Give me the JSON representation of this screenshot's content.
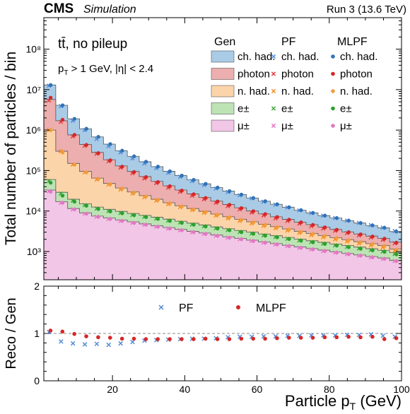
{
  "header": {
    "experiment": "CMS",
    "tag": "Simulation",
    "run": "Run 3 (13.6 TeV)"
  },
  "colors": {
    "ch_had": "#a9cbe6",
    "photon": "#ecaeae",
    "n_had": "#fcd4aa",
    "electron": "#bde3b4",
    "muon": "#f2c6e6",
    "pf_ch_had": "#4c88d9",
    "pf_photon": "#e0363c",
    "pf_n_had": "#f28a1c",
    "pf_electron": "#3da336",
    "pf_muon": "#e66fc8",
    "mlpf_ch_had": "#2f73b8",
    "mlpf_photon": "#d62728",
    "mlpf_n_had": "#f29b3c",
    "mlpf_electron": "#2ca02c",
    "mlpf_muon": "#e377c2",
    "ratio_pf": "#4c88d9",
    "ratio_mlpf": "#d62728"
  },
  "chart_data": [
    {
      "type": "area",
      "annotation_line1": "tt̄, no pileup",
      "annotation_line2_pre": "p",
      "annotation_line2_sub": "T",
      "annotation_line2_post": " > 1 GeV, |η| < 2.4",
      "ylabel": "Total number of particles / bin",
      "yscale": "log",
      "ylim": [
        200,
        600000000
      ],
      "xlim": [
        1,
        100
      ],
      "ytick_labels": [
        "10³",
        "10⁴",
        "10⁵",
        "10⁶",
        "10⁷",
        "10⁸"
      ],
      "legend_headers": {
        "gen": "Gen",
        "pf": "PF",
        "mlpf": "MLPF"
      },
      "series": [
        {
          "key": "ch_had",
          "name": "ch. had."
        },
        {
          "key": "photon",
          "name": "photon"
        },
        {
          "key": "n_had",
          "name": "n. had."
        },
        {
          "key": "electron",
          "name": "e±"
        },
        {
          "key": "muon",
          "name": "μ±"
        }
      ],
      "bin_edges": [
        1,
        4.3,
        7.6,
        10.9,
        14.2,
        17.5,
        20.8,
        24.1,
        27.4,
        30.7,
        34,
        37.3,
        40.6,
        43.9,
        47.2,
        50.5,
        53.8,
        57.1,
        60.4,
        63.7,
        67,
        70.3,
        73.6,
        76.9,
        80.2,
        83.5,
        86.8,
        90.1,
        93.4,
        96.7,
        100
      ],
      "gen_stack_totals": {
        "muon": [
          33000,
          17000,
          11500,
          9000,
          7500,
          6700,
          6000,
          5400,
          4800,
          4300,
          3900,
          3500,
          3150,
          2850,
          2550,
          2300,
          2100,
          1900,
          1720,
          1560,
          1420,
          1300,
          1180,
          1080,
          980,
          890,
          820,
          750,
          690,
          600
        ],
        "electron": [
          60000,
          29000,
          19500,
          15000,
          12500,
          11000,
          9800,
          8700,
          7800,
          7000,
          6300,
          5600,
          5000,
          4500,
          4050,
          3650,
          3300,
          3000,
          2700,
          2450,
          2220,
          2020,
          1840,
          1680,
          1530,
          1400,
          1280,
          1170,
          1070,
          940
        ],
        "n_had": [
          1000000,
          300000,
          150000,
          95000,
          65000,
          48000,
          37000,
          29500,
          24000,
          19500,
          16000,
          13500,
          11500,
          9800,
          8400,
          7200,
          6250,
          5400,
          4700,
          4100,
          3600,
          3150,
          2800,
          2480,
          2200,
          1960,
          1750,
          1560,
          1400,
          1150
        ],
        "photon": [
          5700000,
          1700000,
          760000,
          440000,
          280000,
          185000,
          130000,
          95000,
          71000,
          54000,
          42000,
          33000,
          26500,
          21500,
          17500,
          14500,
          12000,
          10000,
          8500,
          7200,
          6200,
          5300,
          4600,
          4000,
          3500,
          3050,
          2700,
          2400,
          2100,
          1700
        ],
        "ch_had": [
          13000000,
          4100000,
          1900000,
          1080000,
          680000,
          450000,
          310000,
          225000,
          165000,
          125000,
          96000,
          75000,
          59000,
          47000,
          38000,
          31000,
          25500,
          21000,
          17500,
          14700,
          12400,
          10500,
          9000,
          7700,
          6700,
          5800,
          5050,
          4400,
          3850,
          3100
        ]
      },
      "reco_markers": {
        "pf": {
          "ch_had": [
            12500000,
            3900000,
            1700000,
            1000000,
            600000,
            400000,
            280000,
            200000,
            150000,
            115000,
            88000,
            70000,
            55000,
            44000,
            36000,
            29500,
            24500,
            20500,
            17000,
            14400,
            12200,
            10400,
            8900,
            7700,
            6700,
            5800,
            5100,
            4500,
            3900,
            3200
          ],
          "photon": [
            5400000,
            1600000,
            700000,
            410000,
            260000,
            170000,
            118000,
            86000,
            64000,
            49000,
            38000,
            30000,
            24000,
            19500,
            16000,
            13200,
            11000,
            9200,
            7800,
            6600,
            5700,
            4900,
            4250,
            3700,
            3250,
            2850,
            2500,
            2220,
            1950,
            1600
          ],
          "n_had": [
            1000000,
            300000,
            140000,
            90000,
            60000,
            45000,
            34000,
            27000,
            22000,
            18000,
            14800,
            12500,
            10600,
            9000,
            7700,
            6600,
            5700,
            4950,
            4300,
            3750,
            3300,
            2900,
            2550,
            2250,
            2000,
            1780,
            1590,
            1420,
            1270,
            1040
          ],
          "electron": [
            55000,
            27000,
            18000,
            14000,
            11500,
            10000,
            9000,
            8000,
            7200,
            6500,
            5800,
            5200,
            4650,
            4200,
            3750,
            3400,
            3050,
            2780,
            2500,
            2270,
            2060,
            1880,
            1710,
            1560,
            1420,
            1300,
            1190,
            1090,
            1000,
            870
          ],
          "muon": [
            31000,
            16000,
            11000,
            8600,
            7200,
            6400,
            5700,
            5100,
            4600,
            4100,
            3700,
            3350,
            3000,
            2720,
            2440,
            2200,
            2010,
            1820,
            1650,
            1500,
            1360,
            1240,
            1130,
            1030,
            940,
            860,
            790,
            720,
            660,
            580
          ]
        },
        "mlpf": {
          "ch_had": [
            13000000,
            4100000,
            1900000,
            1080000,
            680000,
            450000,
            310000,
            225000,
            165000,
            125000,
            96000,
            75000,
            59000,
            47000,
            38000,
            31000,
            25500,
            21000,
            17500,
            14700,
            12400,
            10500,
            9000,
            7700,
            6700,
            5800,
            5050,
            4400,
            3850,
            3100
          ],
          "photon": [
            6300000,
            1800000,
            760000,
            430000,
            270000,
            180000,
            125000,
            92000,
            69000,
            52000,
            41000,
            32000,
            26000,
            21000,
            17200,
            14200,
            11800,
            9900,
            8400,
            7100,
            6100,
            5250,
            4550,
            3950,
            3450,
            3000,
            2650,
            2350,
            2070,
            1650
          ],
          "n_had": [
            1000000,
            280000,
            140000,
            90000,
            63000,
            46000,
            36000,
            28500,
            23000,
            19000,
            15500,
            13000,
            11000,
            9500,
            8100,
            7000,
            6050,
            5250,
            4550,
            4000,
            3500,
            3080,
            2720,
            2420,
            2150,
            1920,
            1710,
            1530,
            1370,
            1100
          ],
          "electron": [
            50000,
            24000,
            17000,
            13500,
            11200,
            9800,
            8800,
            7900,
            7100,
            6400,
            5700,
            5100,
            4600,
            4150,
            3700,
            3350,
            3000,
            2740,
            2460,
            2240,
            2030,
            1850,
            1690,
            1540,
            1400,
            1280,
            1170,
            1070,
            980,
            850
          ],
          "muon": [
            30000,
            16000,
            11000,
            8600,
            7200,
            6400,
            5700,
            5100,
            4600,
            4100,
            3700,
            3350,
            3000,
            2720,
            2440,
            2200,
            2010,
            1820,
            1650,
            1500,
            1360,
            1240,
            1130,
            1030,
            940,
            860,
            790,
            720,
            660,
            580
          ]
        }
      }
    },
    {
      "type": "scatter",
      "xlabel_pre": "Particle p",
      "xlabel_sub": "T",
      "xlabel_post": " (GeV)",
      "ylabel": "Reco / Gen",
      "xlim": [
        1,
        100
      ],
      "ylim": [
        0,
        2
      ],
      "xtick_labels": [
        "20",
        "40",
        "60",
        "80",
        "100"
      ],
      "xticks": [
        20,
        40,
        60,
        80,
        100
      ],
      "ytick_labels": [
        "0",
        "1",
        "2"
      ],
      "yticks": [
        0,
        1,
        2
      ],
      "reference_line": 1,
      "legend": [
        {
          "key": "pf",
          "name": "PF",
          "marker": "x"
        },
        {
          "key": "mlpf",
          "name": "MLPF",
          "marker": "o"
        }
      ],
      "x": [
        2.65,
        5.95,
        9.25,
        12.55,
        15.85,
        19.15,
        22.45,
        25.75,
        29.05,
        32.35,
        35.65,
        38.95,
        42.25,
        45.55,
        48.85,
        52.15,
        55.45,
        58.75,
        62.05,
        65.35,
        68.65,
        71.95,
        75.25,
        78.55,
        81.85,
        85.15,
        88.45,
        91.75,
        95.05,
        98.35
      ],
      "pf": [
        1.03,
        0.83,
        0.79,
        0.77,
        0.78,
        0.76,
        0.79,
        0.82,
        0.85,
        0.86,
        0.87,
        0.88,
        0.89,
        0.89,
        0.9,
        0.92,
        0.93,
        0.93,
        0.94,
        0.94,
        0.95,
        0.95,
        0.96,
        0.96,
        0.96,
        0.97,
        0.97,
        0.98,
        0.95,
        0.93
      ],
      "mlpf": [
        1.06,
        1.04,
        0.99,
        0.94,
        0.92,
        0.91,
        0.89,
        0.89,
        0.88,
        0.88,
        0.88,
        0.88,
        0.88,
        0.89,
        0.88,
        0.88,
        0.89,
        0.89,
        0.89,
        0.9,
        0.91,
        0.91,
        0.91,
        0.92,
        0.92,
        0.93,
        0.92,
        0.93,
        0.88,
        0.9
      ]
    }
  ]
}
